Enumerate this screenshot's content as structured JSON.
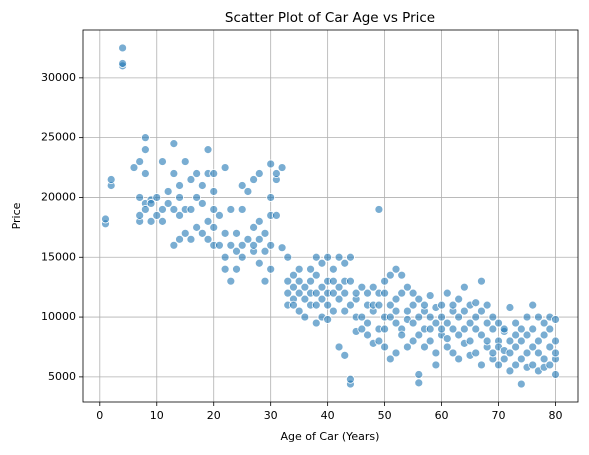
{
  "chart_data": {
    "type": "scatter",
    "title": "Scatter Plot of Car Age vs Price",
    "x_label": "Age of Car (Years)",
    "y_label": "Price",
    "color": "#1f77b4",
    "grid": true,
    "xlim": [
      -2.95,
      83.95
    ],
    "ylim": [
      2900,
      34000
    ],
    "xticks": [
      0,
      10,
      20,
      30,
      40,
      50,
      60,
      70,
      80
    ],
    "yticks": [
      5000,
      10000,
      15000,
      20000,
      25000,
      30000
    ],
    "x": [
      1,
      1,
      2,
      2,
      4,
      4,
      4,
      6,
      7,
      7,
      7,
      7,
      8,
      8,
      8,
      8,
      8,
      9,
      9,
      9,
      10,
      10,
      11,
      11,
      11,
      12,
      12,
      13,
      13,
      13,
      13,
      14,
      14,
      14,
      14,
      15,
      15,
      15,
      16,
      16,
      16,
      17,
      17,
      17,
      18,
      18,
      18,
      19,
      19,
      19,
      19,
      20,
      20,
      20,
      20,
      20,
      21,
      21,
      22,
      22,
      22,
      22,
      23,
      23,
      23,
      24,
      24,
      24,
      25,
      25,
      25,
      25,
      26,
      26,
      27,
      27,
      27,
      27,
      28,
      28,
      28,
      28,
      29,
      29,
      29,
      30,
      30,
      30,
      30,
      30,
      31,
      31,
      31,
      32,
      32,
      33,
      33,
      33,
      33,
      34,
      34,
      34,
      34,
      35,
      35,
      35,
      35,
      36,
      36,
      36,
      37,
      37,
      37,
      37,
      38,
      38,
      38,
      38,
      38,
      39,
      39,
      39,
      39,
      40,
      40,
      40,
      40,
      40,
      41,
      41,
      41,
      41,
      42,
      42,
      42,
      42,
      43,
      43,
      43,
      43,
      43,
      44,
      44,
      44,
      44,
      44,
      45,
      45,
      45,
      45,
      46,
      46,
      46,
      47,
      47,
      47,
      47,
      48,
      48,
      48,
      48,
      49,
      49,
      49,
      49,
      49,
      50,
      50,
      50,
      50,
      50,
      51,
      51,
      51,
      51,
      52,
      52,
      52,
      52,
      52,
      53,
      53,
      53,
      53,
      54,
      54,
      54,
      54,
      55,
      55,
      55,
      55,
      56,
      56,
      56,
      56,
      56,
      57,
      57,
      57,
      57,
      58,
      58,
      58,
      58,
      59,
      59,
      59,
      59,
      60,
      60,
      60,
      60,
      61,
      61,
      61,
      61,
      62,
      62,
      62,
      62,
      63,
      63,
      63,
      63,
      64,
      64,
      64,
      64,
      65,
      65,
      65,
      65,
      66,
      66,
      66,
      66,
      67,
      67,
      67,
      67,
      68,
      68,
      68,
      68,
      69,
      69,
      69,
      69,
      70,
      70,
      70,
      70,
      71,
      71,
      71,
      71,
      72,
      72,
      72,
      72,
      73,
      73,
      73,
      73,
      74,
      74,
      74,
      74,
      75,
      75,
      75,
      75,
      76,
      76,
      76,
      76,
      77,
      77,
      77,
      77,
      78,
      78,
      78,
      78,
      79,
      79,
      79,
      79,
      80,
      80,
      80,
      80,
      80
    ],
    "values": [
      17800,
      18200,
      21000,
      21500,
      31000,
      31200,
      32500,
      22500,
      18000,
      18500,
      20000,
      23000,
      25000,
      24000,
      22000,
      19500,
      19000,
      19800,
      18000,
      19500,
      18500,
      20000,
      23000,
      19000,
      18000,
      19500,
      20500,
      24500,
      16000,
      19000,
      22000,
      16500,
      21000,
      20000,
      18500,
      19000,
      17000,
      23000,
      19000,
      21500,
      16500,
      22000,
      17500,
      20000,
      17000,
      19500,
      21000,
      24000,
      16500,
      22000,
      18000,
      16000,
      19000,
      22000,
      20500,
      17500,
      18500,
      16000,
      15000,
      22500,
      17000,
      14000,
      13000,
      19000,
      16000,
      15500,
      17000,
      14000,
      21000,
      16000,
      19000,
      15000,
      16500,
      20500,
      15500,
      21500,
      17500,
      16000,
      22000,
      16500,
      14500,
      18000,
      13000,
      17000,
      15500,
      22800,
      20000,
      18500,
      14000,
      16000,
      21500,
      22000,
      18500,
      22500,
      15800,
      13000,
      12000,
      15000,
      11000,
      12500,
      13500,
      11500,
      11000,
      12000,
      14000,
      10500,
      13000,
      11500,
      12500,
      10000,
      13000,
      11000,
      14000,
      12000,
      9500,
      12000,
      13500,
      11000,
      15000,
      12500,
      10000,
      14500,
      11500,
      13000,
      11000,
      15000,
      12000,
      9800,
      12000,
      14000,
      10500,
      13000,
      15000,
      11500,
      12500,
      7500,
      14500,
      10500,
      6800,
      13000,
      12000,
      4400,
      4800,
      11000,
      13000,
      15000,
      8800,
      11500,
      10000,
      12000,
      10000,
      12500,
      9000,
      9500,
      11000,
      12000,
      8500,
      7800,
      10500,
      12500,
      11000,
      19000,
      9000,
      11000,
      12000,
      8000,
      10000,
      12000,
      13000,
      9000,
      7500,
      6500,
      11000,
      13500,
      10000,
      14000,
      9500,
      11500,
      7000,
      10500,
      12000,
      9000,
      13500,
      8500,
      7500,
      10500,
      12500,
      9800,
      11000,
      8000,
      12000,
      9500,
      4500,
      5200,
      10000,
      11500,
      8500,
      9000,
      10500,
      11000,
      7500,
      8000,
      10000,
      11800,
      9000,
      6000,
      10800,
      9500,
      7000,
      8500,
      11000,
      9000,
      10000,
      7500,
      12000,
      9500,
      8200,
      10500,
      7000,
      9000,
      11000,
      8500,
      10000,
      6500,
      11500,
      9000,
      12500,
      7800,
      10500,
      8000,
      11000,
      6800,
      9500,
      7000,
      10000,
      9000,
      11200,
      13000,
      6000,
      8500,
      10500,
      9500,
      7500,
      11000,
      8000,
      6500,
      9000,
      10000,
      7000,
      8000,
      9500,
      6000,
      7500,
      7200,
      8800,
      6500,
      9000,
      10800,
      5500,
      8000,
      7000,
      6000,
      9500,
      7500,
      8500,
      4400,
      8000,
      6500,
      9000,
      10000,
      7000,
      5800,
      8500,
      11000,
      6000,
      9000,
      7500,
      5500,
      8000,
      10000,
      7000,
      6500,
      9500,
      8500,
      5800,
      7500,
      10000,
      6000,
      9000,
      5200,
      8000,
      9800,
      6500,
      7000
    ]
  }
}
